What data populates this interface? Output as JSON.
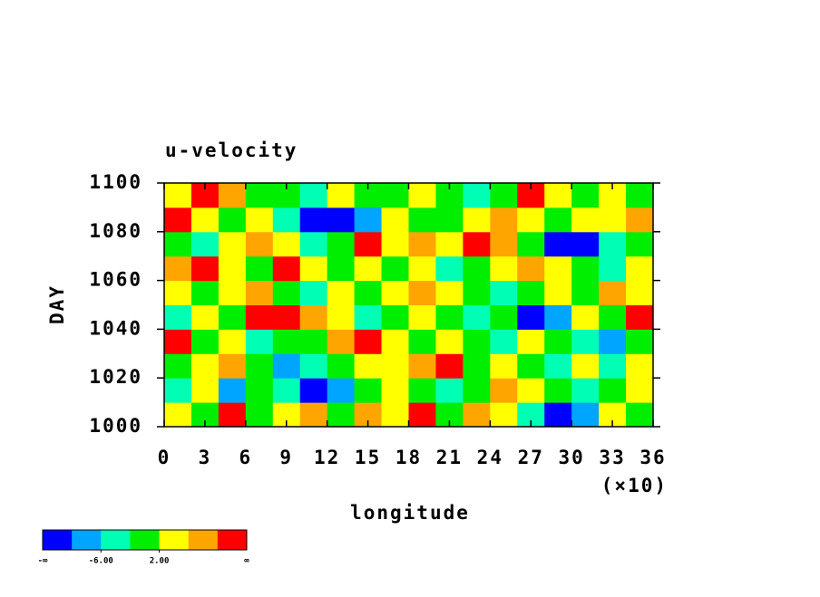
{
  "chart_data": {
    "type": "heatmap",
    "title": "u-velocity",
    "x_label": "longitude",
    "y_label": "DAY",
    "x_multiplier": "(×10)",
    "x": [
      1,
      3,
      5,
      7,
      9,
      11,
      13,
      15,
      17,
      19,
      21,
      23,
      25,
      27,
      29,
      31,
      33,
      35
    ],
    "y": [
      1005,
      1015,
      1025,
      1035,
      1045,
      1055,
      1065,
      1075,
      1085,
      1095
    ],
    "z": [
      [
        4,
        0,
        12,
        0,
        4,
        8,
        0,
        8,
        4,
        12,
        0,
        8,
        4,
        -4,
        -12,
        -8,
        4,
        0
      ],
      [
        -4,
        4,
        -8,
        0,
        -4,
        -12,
        -8,
        0,
        4,
        0,
        -4,
        0,
        8,
        4,
        0,
        -4,
        0,
        4
      ],
      [
        0,
        4,
        8,
        0,
        -8,
        -4,
        0,
        4,
        4,
        8,
        12,
        0,
        4,
        0,
        -4,
        4,
        -4,
        4
      ],
      [
        12,
        0,
        4,
        -4,
        0,
        0,
        8,
        12,
        4,
        0,
        4,
        0,
        -4,
        4,
        0,
        -4,
        -8,
        0
      ],
      [
        -4,
        4,
        0,
        12,
        12,
        8,
        4,
        -4,
        0,
        4,
        0,
        -4,
        0,
        -12,
        -8,
        4,
        0,
        12
      ],
      [
        4,
        0,
        4,
        8,
        0,
        -4,
        4,
        0,
        4,
        8,
        4,
        0,
        -4,
        0,
        4,
        0,
        8,
        4
      ],
      [
        8,
        12,
        4,
        0,
        12,
        4,
        0,
        4,
        0,
        4,
        -4,
        0,
        4,
        8,
        4,
        0,
        -4,
        4
      ],
      [
        0,
        -4,
        4,
        8,
        4,
        -4,
        0,
        12,
        4,
        8,
        4,
        12,
        8,
        0,
        -12,
        -12,
        -4,
        0
      ],
      [
        12,
        4,
        0,
        4,
        -4,
        -12,
        -12,
        -8,
        4,
        0,
        0,
        4,
        8,
        4,
        0,
        4,
        4,
        8
      ],
      [
        4,
        12,
        8,
        0,
        0,
        -4,
        4,
        0,
        0,
        4,
        0,
        -4,
        0,
        12,
        4,
        0,
        4,
        0
      ]
    ],
    "xlim": [
      0,
      36
    ],
    "xticks": [
      0,
      3,
      6,
      9,
      12,
      15,
      18,
      21,
      24,
      27,
      30,
      33,
      36
    ],
    "ylim": [
      1000,
      1100
    ],
    "yticks": [
      1000,
      1020,
      1040,
      1060,
      1080,
      1100
    ],
    "levels": [
      -10,
      -6,
      -2,
      2,
      6,
      10
    ],
    "colors": [
      "#0000ff",
      "#00a5ff",
      "#00ffb4",
      "#00ee00",
      "#ffff00",
      "#ffa500",
      "#ff0000"
    ],
    "colorbar": {
      "low_label": "-∞",
      "high_label": "∞",
      "ticks": [
        {
          "value": -6,
          "label": "-6.00"
        },
        {
          "value": 2,
          "label": "2.00"
        }
      ]
    }
  }
}
